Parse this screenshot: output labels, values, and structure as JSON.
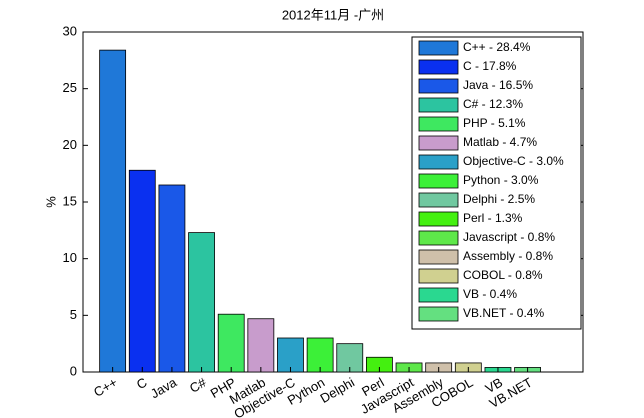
{
  "chart_data": {
    "type": "bar",
    "title": "2012年11月 -广州",
    "y_label": "%",
    "categories": [
      "C++",
      "C",
      "Java",
      "C#",
      "PHP",
      "Matlab",
      "Objective-C",
      "Python",
      "Delphi",
      "Perl",
      "Javascript",
      "Assembly",
      "COBOL",
      "VB",
      "VB.NET"
    ],
    "values": [
      28.4,
      17.8,
      16.5,
      12.3,
      5.1,
      4.7,
      3.0,
      3.0,
      2.5,
      1.3,
      0.8,
      0.8,
      0.8,
      0.4,
      0.4
    ],
    "value_labels": [
      "C++ - 28.4%",
      "C - 17.8%",
      "Java - 16.5%",
      "C# - 12.3%",
      "PHP - 5.1%",
      "Matlab - 4.7%",
      "Objective-C - 3.0%",
      "Python - 3.0%",
      "Delphi - 2.5%",
      "Perl - 1.3%",
      "Javascript - 0.8%",
      "Assembly - 0.8%",
      "COBOL - 0.8%",
      "VB - 0.4%",
      "VB.NET - 0.4%"
    ],
    "colors": [
      "#1f78d8",
      "#0a30f0",
      "#1a58e8",
      "#2cc4a0",
      "#3ee860",
      "#c89ccc",
      "#2aa0c8",
      "#3cf038",
      "#70c8a0",
      "#44f010",
      "#5ee84a",
      "#cfc0aa",
      "#d0d090",
      "#2ad890",
      "#64e080"
    ],
    "ylim": [
      0,
      30
    ],
    "yticks": [
      0,
      5,
      10,
      15,
      20,
      25,
      30
    ],
    "legend": "upper right"
  }
}
